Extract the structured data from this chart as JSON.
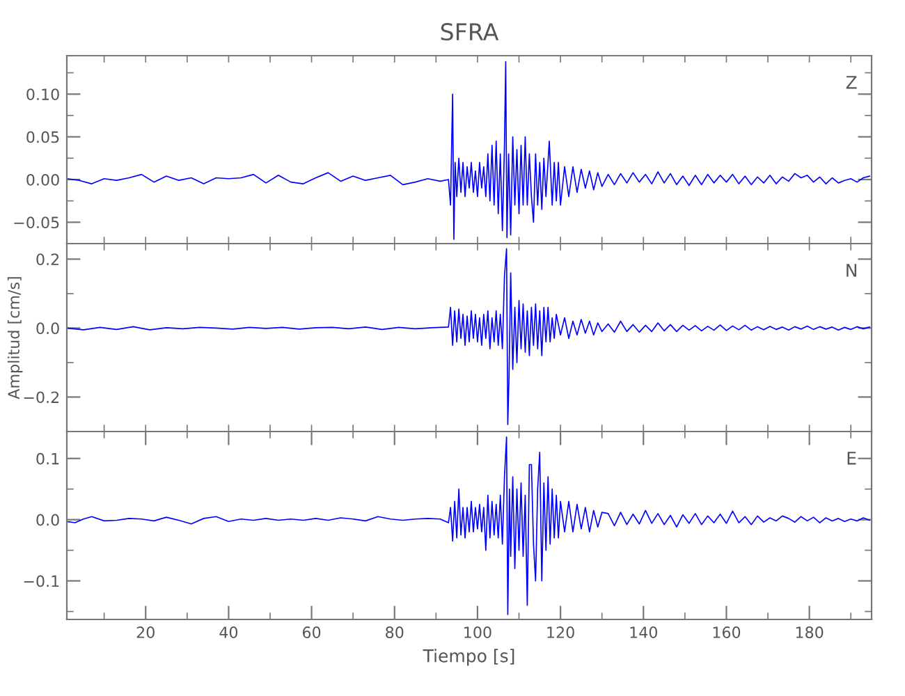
{
  "chart_data": [
    {
      "type": "line",
      "title": "SFRA",
      "annotations": [
        "Z"
      ],
      "tick_labels": "y",
      "grid": false,
      "xlim": [
        1,
        195
      ],
      "xticks": [
        {
          "value": 10,
          "label": null
        },
        {
          "value": 20,
          "label": null
        },
        {
          "value": 30,
          "label": null
        },
        {
          "value": 40,
          "label": null
        },
        {
          "value": 50,
          "label": null
        },
        {
          "value": 60,
          "label": null
        },
        {
          "value": 70,
          "label": null
        },
        {
          "value": 80,
          "label": null
        },
        {
          "value": 90,
          "label": null
        },
        {
          "value": 100,
          "label": null
        },
        {
          "value": 110,
          "label": null
        },
        {
          "value": 120,
          "label": null
        },
        {
          "value": 130,
          "label": null
        },
        {
          "value": 140,
          "label": null
        },
        {
          "value": 150,
          "label": null
        },
        {
          "value": 160,
          "label": null
        },
        {
          "value": 170,
          "label": null
        },
        {
          "value": 180,
          "label": null
        },
        {
          "value": 190,
          "label": null
        }
      ],
      "ylim": [
        -0.075,
        0.145
      ],
      "yticks": [
        {
          "value": -0.05,
          "label": "−0.05"
        },
        {
          "value": -0.025,
          "label": null
        },
        {
          "value": 0,
          "label": "0.00"
        },
        {
          "value": 0.025,
          "label": null
        },
        {
          "value": 0.05,
          "label": "0.05"
        },
        {
          "value": 0.075,
          "label": null
        },
        {
          "value": 0.1,
          "label": "0.10"
        },
        {
          "value": 0.125,
          "label": null
        }
      ],
      "series": [
        {
          "color": "#0000ff",
          "x": [
            1,
            4,
            7,
            10,
            13,
            16,
            19,
            22,
            25,
            28,
            31,
            34,
            37,
            40,
            43,
            46,
            49,
            52,
            55,
            58,
            61,
            64,
            67,
            70,
            73,
            76,
            79,
            82,
            85,
            88,
            91,
            93,
            93.5,
            94.0,
            94.3,
            94.6,
            95,
            95.5,
            96,
            96.5,
            97,
            97.5,
            98,
            98.5,
            99,
            99.5,
            100,
            100.5,
            101,
            101.5,
            102,
            102.5,
            103,
            103.5,
            104,
            104.5,
            105,
            105.5,
            106,
            106.5,
            106.8,
            107.1,
            107.5,
            108,
            108.5,
            109,
            109.5,
            110,
            110.5,
            111,
            111.5,
            112,
            112.5,
            113,
            113.5,
            114,
            114.5,
            115,
            115.5,
            116,
            116.5,
            117.3,
            118,
            118.5,
            119,
            119.5,
            120,
            121,
            122,
            123,
            124,
            125,
            126,
            127,
            128,
            129,
            130,
            131.5,
            133,
            134.5,
            136,
            137.5,
            139,
            140.5,
            142,
            143.5,
            145,
            146.5,
            148,
            149.5,
            151,
            152.5,
            154,
            155.5,
            157,
            158.5,
            160,
            161.5,
            163,
            164.5,
            166,
            167.5,
            169,
            170.5,
            172,
            173.5,
            175,
            176.5,
            178,
            179.5,
            181,
            182.5,
            184,
            185.5,
            187,
            188.5,
            190,
            191.5,
            193,
            194.5
          ],
          "values": [
            0.001,
            -0.001,
            -0.005,
            0.001,
            -0.001,
            0.002,
            0.006,
            -0.003,
            0.004,
            -0.001,
            0.002,
            -0.005,
            0.002,
            0.001,
            0.002,
            0.006,
            -0.004,
            0.005,
            -0.003,
            -0.005,
            0.002,
            0.008,
            -0.002,
            0.004,
            -0.001,
            0.002,
            0.005,
            -0.006,
            -0.003,
            0.001,
            -0.002,
            0.0,
            -0.03,
            0.1,
            -0.07,
            0.02,
            -0.02,
            0.025,
            -0.015,
            0.02,
            -0.02,
            0.015,
            -0.01,
            0.02,
            -0.015,
            0.01,
            -0.02,
            0.02,
            -0.01,
            0.015,
            -0.02,
            0.03,
            -0.025,
            0.04,
            -0.03,
            0.045,
            -0.04,
            0.03,
            -0.06,
            0.04,
            0.138,
            -0.068,
            0.03,
            -0.065,
            0.05,
            -0.03,
            0.035,
            -0.04,
            0.04,
            -0.03,
            0.05,
            -0.03,
            0.03,
            -0.02,
            -0.05,
            0.03,
            -0.03,
            0.02,
            -0.035,
            0.025,
            -0.02,
            0.045,
            -0.03,
            0.02,
            -0.025,
            0.02,
            -0.03,
            0.015,
            -0.02,
            0.015,
            -0.015,
            0.012,
            -0.01,
            0.01,
            -0.012,
            0.008,
            -0.008,
            0.006,
            -0.006,
            0.007,
            -0.004,
            0.008,
            -0.003,
            0.006,
            -0.005,
            0.009,
            -0.004,
            0.007,
            -0.006,
            0.004,
            -0.007,
            0.005,
            -0.006,
            0.006,
            -0.004,
            0.005,
            -0.003,
            0.006,
            -0.005,
            0.004,
            -0.006,
            0.003,
            -0.004,
            0.005,
            -0.005,
            0.003,
            -0.002,
            0.007,
            0.002,
            0.005,
            -0.003,
            0.003,
            -0.005,
            0.002,
            -0.004,
            -0.001,
            0.001,
            -0.003,
            0.002,
            0.004
          ]
        }
      ]
    },
    {
      "type": "line",
      "ylabel": "Amplitud [cm/s]",
      "annotations": [
        "N"
      ],
      "tick_labels": "y",
      "grid": false,
      "xlim": [
        1,
        195
      ],
      "xticks": [
        {
          "value": 10,
          "label": null
        },
        {
          "value": 20,
          "label": null
        },
        {
          "value": 30,
          "label": null
        },
        {
          "value": 40,
          "label": null
        },
        {
          "value": 50,
          "label": null
        },
        {
          "value": 60,
          "label": null
        },
        {
          "value": 70,
          "label": null
        },
        {
          "value": 80,
          "label": null
        },
        {
          "value": 90,
          "label": null
        },
        {
          "value": 100,
          "label": null
        },
        {
          "value": 110,
          "label": null
        },
        {
          "value": 120,
          "label": null
        },
        {
          "value": 130,
          "label": null
        },
        {
          "value": 140,
          "label": null
        },
        {
          "value": 150,
          "label": null
        },
        {
          "value": 160,
          "label": null
        },
        {
          "value": 170,
          "label": null
        },
        {
          "value": 180,
          "label": null
        },
        {
          "value": 190,
          "label": null
        }
      ],
      "ylim": [
        -0.3,
        0.245
      ],
      "yticks": [
        {
          "value": -0.2,
          "label": "−0.2"
        },
        {
          "value": -0.1,
          "label": null
        },
        {
          "value": 0,
          "label": "0.0"
        },
        {
          "value": 0.1,
          "label": null
        },
        {
          "value": 0.2,
          "label": "0.2"
        }
      ],
      "series": [
        {
          "color": "#0000ff",
          "x": [
            1,
            5,
            9,
            13,
            17,
            21,
            25,
            29,
            33,
            37,
            41,
            45,
            49,
            53,
            57,
            61,
            65,
            69,
            73,
            77,
            81,
            85,
            89,
            93,
            93.5,
            94.0,
            94.5,
            95,
            95.5,
            96,
            96.5,
            97,
            97.5,
            98,
            98.5,
            99,
            99.5,
            100,
            100.5,
            101,
            101.5,
            102,
            102.5,
            103,
            103.5,
            104,
            104.5,
            105,
            105.5,
            106,
            106.5,
            107,
            107.3,
            107.6,
            108,
            108.5,
            109,
            109.5,
            110,
            110.5,
            111,
            111.5,
            112,
            112.5,
            113,
            113.5,
            114,
            114.5,
            115,
            115.5,
            116,
            116.5,
            117,
            117.5,
            118,
            118.5,
            119,
            120,
            121,
            122,
            123,
            124,
            125,
            126,
            127,
            128,
            129,
            130,
            131.5,
            133,
            134.5,
            136,
            137.5,
            139,
            140.5,
            142,
            143.5,
            145,
            146.5,
            148,
            149.5,
            151,
            152.5,
            154,
            155.5,
            157,
            158.5,
            160,
            161.5,
            163,
            164.5,
            166,
            167.5,
            169,
            170.5,
            172,
            173.5,
            175,
            176.5,
            178,
            179.5,
            181,
            182.5,
            184,
            185.5,
            187,
            188.5,
            190,
            191.5,
            193,
            194.5
          ],
          "values": [
            0.0,
            -0.005,
            0.002,
            -0.004,
            0.004,
            -0.005,
            0.001,
            -0.002,
            0.002,
            0.0,
            -0.003,
            0.002,
            -0.001,
            0.002,
            -0.003,
            0.001,
            0.002,
            -0.002,
            0.003,
            -0.004,
            0.002,
            -0.002,
            0.001,
            0.003,
            0.06,
            -0.05,
            0.05,
            -0.04,
            0.055,
            -0.03,
            0.04,
            -0.05,
            0.035,
            -0.04,
            0.05,
            -0.03,
            0.04,
            -0.04,
            0.03,
            -0.05,
            0.04,
            -0.03,
            0.05,
            -0.06,
            0.03,
            -0.04,
            0.05,
            -0.05,
            0.04,
            -0.06,
            0.15,
            0.23,
            -0.28,
            -0.14,
            0.16,
            -0.12,
            0.06,
            -0.1,
            0.08,
            -0.06,
            0.07,
            -0.07,
            0.05,
            -0.08,
            0.06,
            -0.05,
            0.07,
            -0.06,
            0.05,
            -0.08,
            0.06,
            -0.04,
            0.06,
            -0.04,
            0.03,
            -0.03,
            0.04,
            -0.02,
            0.03,
            -0.03,
            0.02,
            -0.02,
            0.025,
            -0.015,
            0.02,
            -0.02,
            0.015,
            -0.01,
            0.012,
            -0.012,
            0.02,
            -0.01,
            0.01,
            -0.012,
            0.008,
            -0.01,
            0.015,
            -0.008,
            0.01,
            -0.01,
            0.008,
            -0.006,
            0.007,
            -0.008,
            0.005,
            -0.006,
            0.009,
            -0.007,
            0.006,
            -0.005,
            0.008,
            -0.006,
            0.004,
            -0.005,
            0.005,
            -0.004,
            0.003,
            -0.006,
            0.004,
            -0.003,
            0.006,
            -0.004,
            0.004,
            -0.003,
            0.003,
            -0.006,
            0.002,
            -0.004,
            0.004,
            -0.002,
            0.003
          ]
        }
      ]
    },
    {
      "type": "line",
      "xlabel": "Tiempo [s]",
      "annotations": [
        "E"
      ],
      "grid": false,
      "xlim": [
        1,
        195
      ],
      "xticks": [
        {
          "value": 10,
          "label": null
        },
        20,
        {
          "value": 30,
          "label": null
        },
        40,
        {
          "value": 50,
          "label": null
        },
        60,
        {
          "value": 70,
          "label": null
        },
        80,
        {
          "value": 90,
          "label": null
        },
        100,
        {
          "value": 110,
          "label": null
        },
        120,
        {
          "value": 130,
          "label": null
        },
        140,
        {
          "value": 150,
          "label": null
        },
        160,
        {
          "value": 170,
          "label": null
        },
        180,
        {
          "value": 190,
          "label": null
        }
      ],
      "ylim": [
        -0.163,
        0.144
      ],
      "yticks": [
        {
          "value": -0.15,
          "label": null
        },
        {
          "value": -0.1,
          "label": "−0.1"
        },
        {
          "value": -0.05,
          "label": null
        },
        {
          "value": 0,
          "label": "0.0"
        },
        {
          "value": 0.05,
          "label": null
        },
        {
          "value": 0.1,
          "label": "0.1"
        }
      ],
      "series": [
        {
          "color": "#0000ff",
          "x": [
            1,
            3,
            5,
            7,
            10,
            13,
            16,
            19,
            22,
            25,
            28,
            31,
            34,
            37,
            40,
            43,
            46,
            49,
            52,
            55,
            58,
            61,
            64,
            67,
            70,
            73,
            76,
            79,
            82,
            85,
            88,
            91,
            93,
            93.5,
            94.0,
            94.5,
            95,
            95.5,
            96,
            96.5,
            97,
            97.5,
            98,
            98.5,
            99,
            99.5,
            100,
            100.5,
            101,
            101.5,
            102,
            102.5,
            103,
            103.5,
            104,
            104.5,
            105,
            105.5,
            106,
            106.5,
            107,
            107.3,
            107.7,
            108,
            108.5,
            109,
            109.5,
            110,
            110.5,
            111,
            111.5,
            112,
            112.5,
            113,
            113.5,
            114,
            114.5,
            115,
            115.5,
            116,
            116.5,
            117,
            117.5,
            118,
            118.5,
            119,
            119.5,
            120,
            121,
            122,
            123,
            124,
            125,
            126,
            127,
            128,
            129,
            130,
            131.5,
            133,
            134.5,
            136,
            137.5,
            139,
            140.5,
            142,
            143.5,
            145,
            146.5,
            148,
            149.5,
            151,
            152.5,
            154,
            155.5,
            157,
            158.5,
            160,
            161.5,
            163,
            164.5,
            166,
            167.5,
            169,
            170.5,
            172,
            173.5,
            175,
            176.5,
            178,
            179.5,
            181,
            182.5,
            184,
            185.5,
            187,
            188.5,
            190,
            191.5,
            193,
            194.5
          ],
          "values": [
            -0.003,
            -0.005,
            0.001,
            0.005,
            -0.002,
            -0.001,
            0.002,
            0.001,
            -0.002,
            0.004,
            -0.001,
            -0.007,
            0.002,
            0.005,
            -0.003,
            0.001,
            -0.001,
            0.002,
            -0.001,
            0.001,
            -0.001,
            0.002,
            -0.001,
            0.003,
            0.001,
            -0.002,
            0.005,
            0.001,
            -0.001,
            0.001,
            0.002,
            0.001,
            -0.005,
            0.02,
            -0.035,
            0.03,
            -0.03,
            0.05,
            -0.025,
            0.02,
            -0.03,
            0.02,
            -0.02,
            0.03,
            -0.02,
            0.02,
            -0.015,
            0.025,
            -0.02,
            0.02,
            -0.05,
            0.04,
            -0.03,
            0.03,
            -0.025,
            0.025,
            -0.03,
            0.04,
            -0.04,
            0.07,
            0.135,
            -0.155,
            0.05,
            -0.06,
            0.07,
            -0.08,
            0.05,
            -0.05,
            0.06,
            -0.06,
            0.04,
            -0.14,
            0.09,
            0.09,
            -0.04,
            -0.1,
            0.05,
            0.11,
            -0.1,
            0.06,
            -0.05,
            0.07,
            -0.04,
            0.05,
            -0.03,
            0.04,
            -0.03,
            0.03,
            -0.02,
            0.03,
            -0.02,
            0.025,
            -0.015,
            0.02,
            -0.02,
            0.015,
            -0.012,
            0.012,
            0.01,
            -0.01,
            0.012,
            -0.008,
            0.009,
            -0.007,
            0.015,
            -0.006,
            0.01,
            -0.008,
            0.007,
            -0.012,
            0.008,
            -0.006,
            0.01,
            -0.008,
            0.006,
            -0.005,
            0.009,
            -0.006,
            0.014,
            -0.005,
            0.005,
            -0.008,
            0.006,
            -0.004,
            0.003,
            -0.002,
            0.006,
            0.002,
            -0.004,
            0.005,
            -0.002,
            0.004,
            -0.005,
            0.003,
            -0.002,
            0.002,
            -0.003,
            0.001,
            -0.002,
            0.003,
            -0.001
          ]
        }
      ]
    }
  ]
}
